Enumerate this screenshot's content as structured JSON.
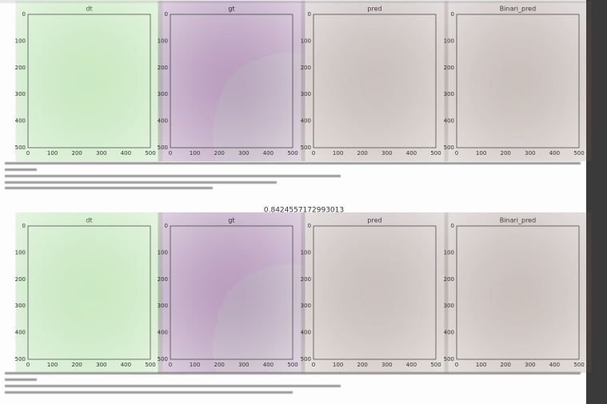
{
  "panel_titles": [
    "dt",
    "gt",
    "pred",
    "Binari_pred"
  ],
  "row2_title": "0.8424557172993013",
  "xticks": [
    "0",
    "100",
    "200",
    "300",
    "400",
    "500"
  ],
  "yticks": [
    "0",
    "100",
    "200",
    "300",
    "400",
    "500"
  ]
}
